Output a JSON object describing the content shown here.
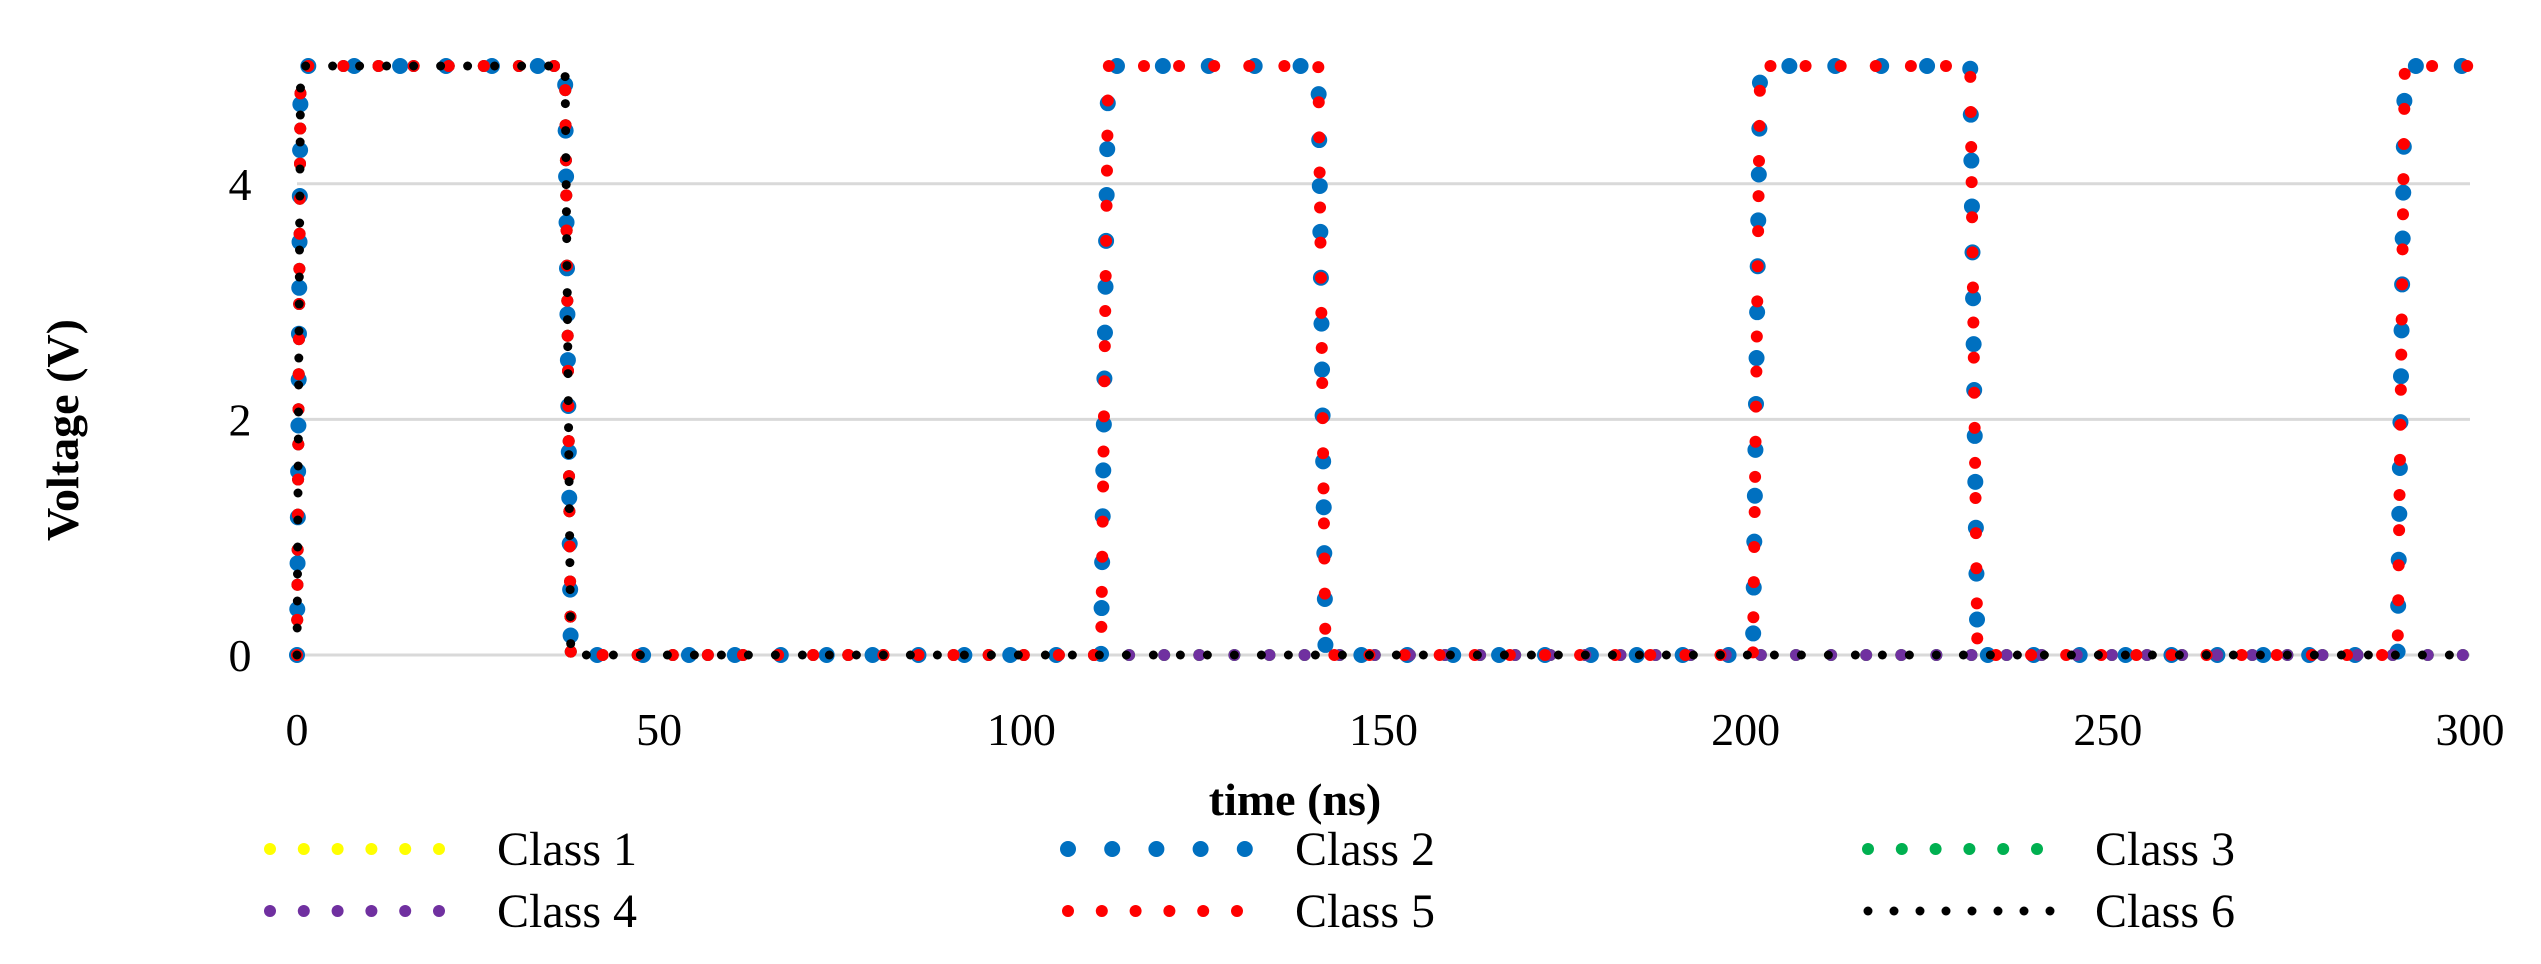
{
  "chart_data": {
    "type": "line",
    "xlabel": "time (ns)",
    "ylabel": "Voltage (V)",
    "xlim": [
      0,
      300
    ],
    "ylim": [
      0,
      5
    ],
    "x_ticks": [
      0,
      50,
      100,
      150,
      200,
      250,
      300
    ],
    "y_ticks": [
      0,
      2,
      4
    ],
    "grid": "horizontal",
    "legend_position": "bottom",
    "series": [
      {
        "name": "Class 1",
        "color": "#ffff00",
        "marker_size": "medium",
        "x": [
          0,
          0.5,
          37,
          37.8,
          300
        ],
        "y": [
          0,
          5,
          5,
          0,
          0
        ]
      },
      {
        "name": "Class 2",
        "color": "#0070c0",
        "marker_size": "large",
        "x": [
          0,
          0.5,
          37,
          37.8,
          111,
          112,
          141,
          142,
          201,
          202,
          231,
          232,
          290,
          291,
          300
        ],
        "y": [
          0,
          5,
          5,
          0,
          0,
          5,
          5,
          0,
          0,
          5,
          5,
          0,
          0,
          5,
          5
        ]
      },
      {
        "name": "Class 3",
        "color": "#00b050",
        "marker_size": "medium",
        "x": [
          0,
          0.5,
          37,
          37.8,
          300
        ],
        "y": [
          0,
          5,
          5,
          0,
          0
        ]
      },
      {
        "name": "Class 4",
        "color": "#7030a0",
        "marker_size": "medium",
        "x": [
          0,
          0.5,
          37,
          37.8,
          300
        ],
        "y": [
          0,
          5,
          5,
          0,
          0
        ]
      },
      {
        "name": "Class 5",
        "color": "#ff0000",
        "marker_size": "medium",
        "x": [
          0,
          0.5,
          37,
          37.8,
          111,
          112,
          141,
          142,
          201,
          202,
          231,
          232,
          290,
          291,
          300
        ],
        "y": [
          0,
          5,
          5,
          0,
          0,
          5,
          5,
          0,
          0,
          5,
          5,
          0,
          0,
          5,
          5
        ]
      },
      {
        "name": "Class 6",
        "color": "#000000",
        "marker_size": "small",
        "x": [
          0,
          0.5,
          37,
          37.8,
          300
        ],
        "y": [
          0,
          5,
          5,
          0,
          0
        ]
      }
    ]
  }
}
